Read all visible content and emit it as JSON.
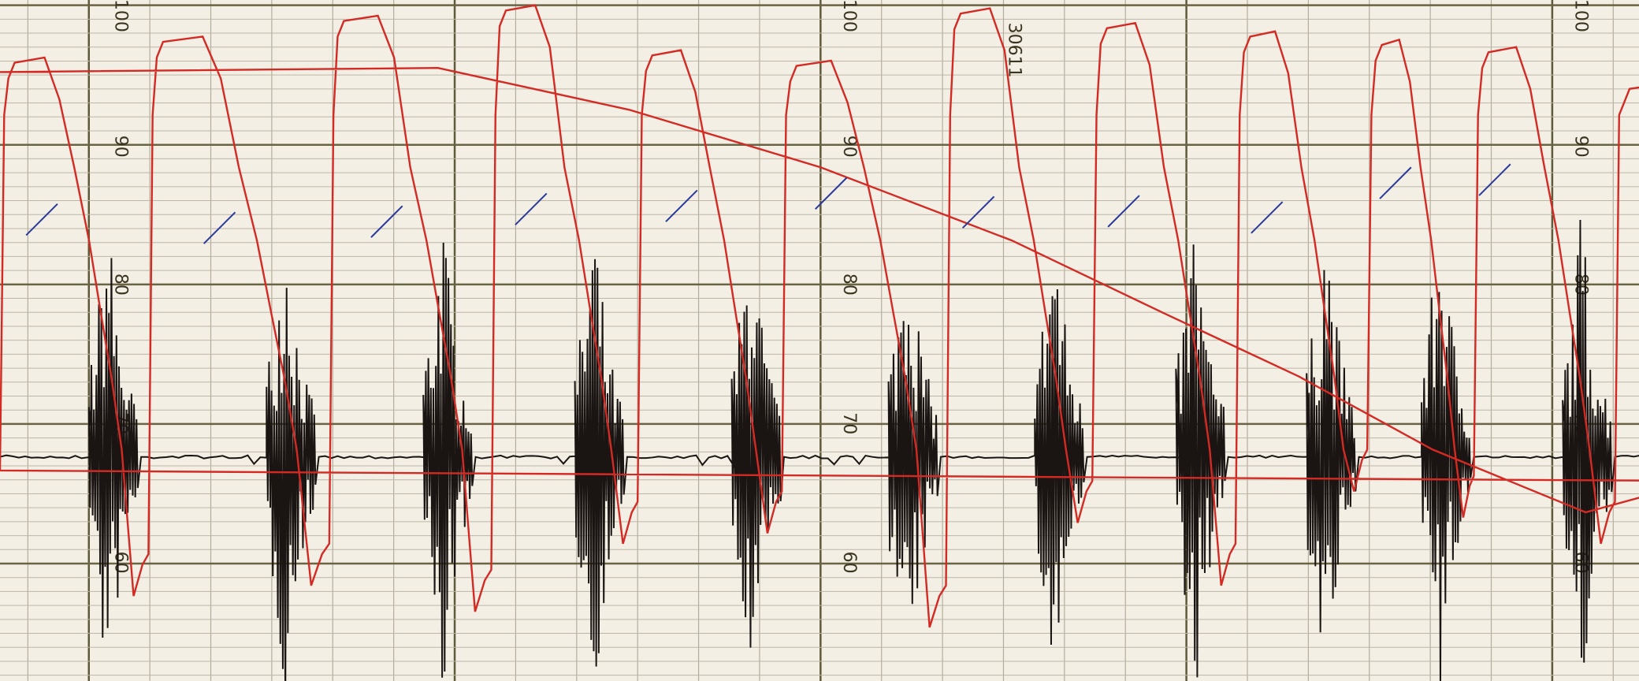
{
  "scale_labels": [
    "100",
    "90",
    "80",
    "70",
    "60"
  ],
  "annotation": "30611"
}
